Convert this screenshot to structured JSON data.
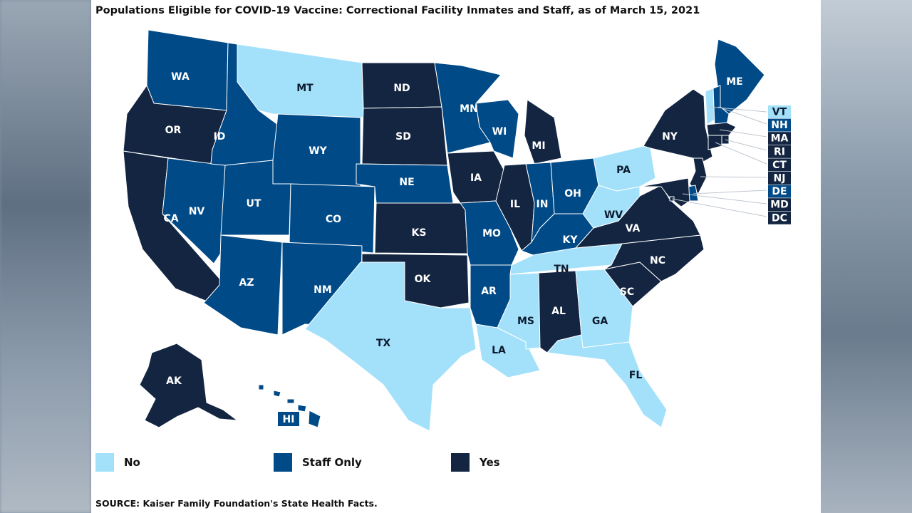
{
  "title": "Populations Eligible for COVID-19 Vaccine: Correctional Facility Inmates and Staff, as of March 15, 2021",
  "source": "SOURCE: Kaiser Family Foundation's State Health Facts.",
  "colors": {
    "no": "#a3e1fb",
    "staff_only": "#004a87",
    "yes": "#132540"
  },
  "legend": [
    {
      "key": "no",
      "label": "No"
    },
    {
      "key": "staff_only",
      "label": "Staff Only"
    },
    {
      "key": "yes",
      "label": "Yes"
    }
  ],
  "states": {
    "WA": "staff_only",
    "OR": "yes",
    "CA": "yes",
    "NV": "staff_only",
    "ID": "staff_only",
    "MT": "no",
    "WY": "staff_only",
    "UT": "staff_only",
    "AZ": "staff_only",
    "CO": "staff_only",
    "NM": "staff_only",
    "ND": "yes",
    "SD": "yes",
    "NE": "staff_only",
    "KS": "yes",
    "OK": "yes",
    "TX": "no",
    "MN": "staff_only",
    "IA": "yes",
    "MO": "staff_only",
    "AR": "staff_only",
    "LA": "no",
    "WI": "staff_only",
    "IL": "yes",
    "MI": "yes",
    "IN": "staff_only",
    "OH": "staff_only",
    "KY": "staff_only",
    "TN": "no",
    "MS": "no",
    "AL": "yes",
    "GA": "no",
    "FL": "no",
    "SC": "yes",
    "NC": "yes",
    "VA": "yes",
    "WV": "no",
    "PA": "no",
    "NY": "yes",
    "ME": "staff_only",
    "AK": "yes",
    "HI": "staff_only",
    "VT": "no",
    "NH": "staff_only",
    "MA": "yes",
    "RI": "yes",
    "CT": "yes",
    "NJ": "yes",
    "DE": "staff_only",
    "MD": "yes",
    "DC": "yes"
  },
  "labels": {
    "WA": "WA",
    "OR": "OR",
    "CA": "CA",
    "NV": "NV",
    "ID": "ID",
    "MT": "MT",
    "WY": "WY",
    "UT": "UT",
    "AZ": "AZ",
    "CO": "CO",
    "NM": "NM",
    "ND": "ND",
    "SD": "SD",
    "NE": "NE",
    "KS": "KS",
    "OK": "OK",
    "TX": "TX",
    "MN": "MN",
    "IA": "IA",
    "MO": "MO",
    "AR": "AR",
    "LA": "LA",
    "WI": "WI",
    "IL": "IL",
    "MI": "MI",
    "IN": "IN",
    "OH": "OH",
    "KY": "KY",
    "TN": "TN",
    "MS": "MS",
    "AL": "AL",
    "GA": "GA",
    "FL": "FL",
    "SC": "SC",
    "NC": "NC",
    "VA": "VA",
    "WV": "WV",
    "PA": "PA",
    "NY": "NY",
    "ME": "ME",
    "AK": "AK",
    "HI": "HI",
    "VT": "VT",
    "NH": "NH",
    "MA": "MA",
    "RI": "RI",
    "CT": "CT",
    "NJ": "NJ",
    "DE": "DE",
    "MD": "MD",
    "DC": "DC"
  }
}
